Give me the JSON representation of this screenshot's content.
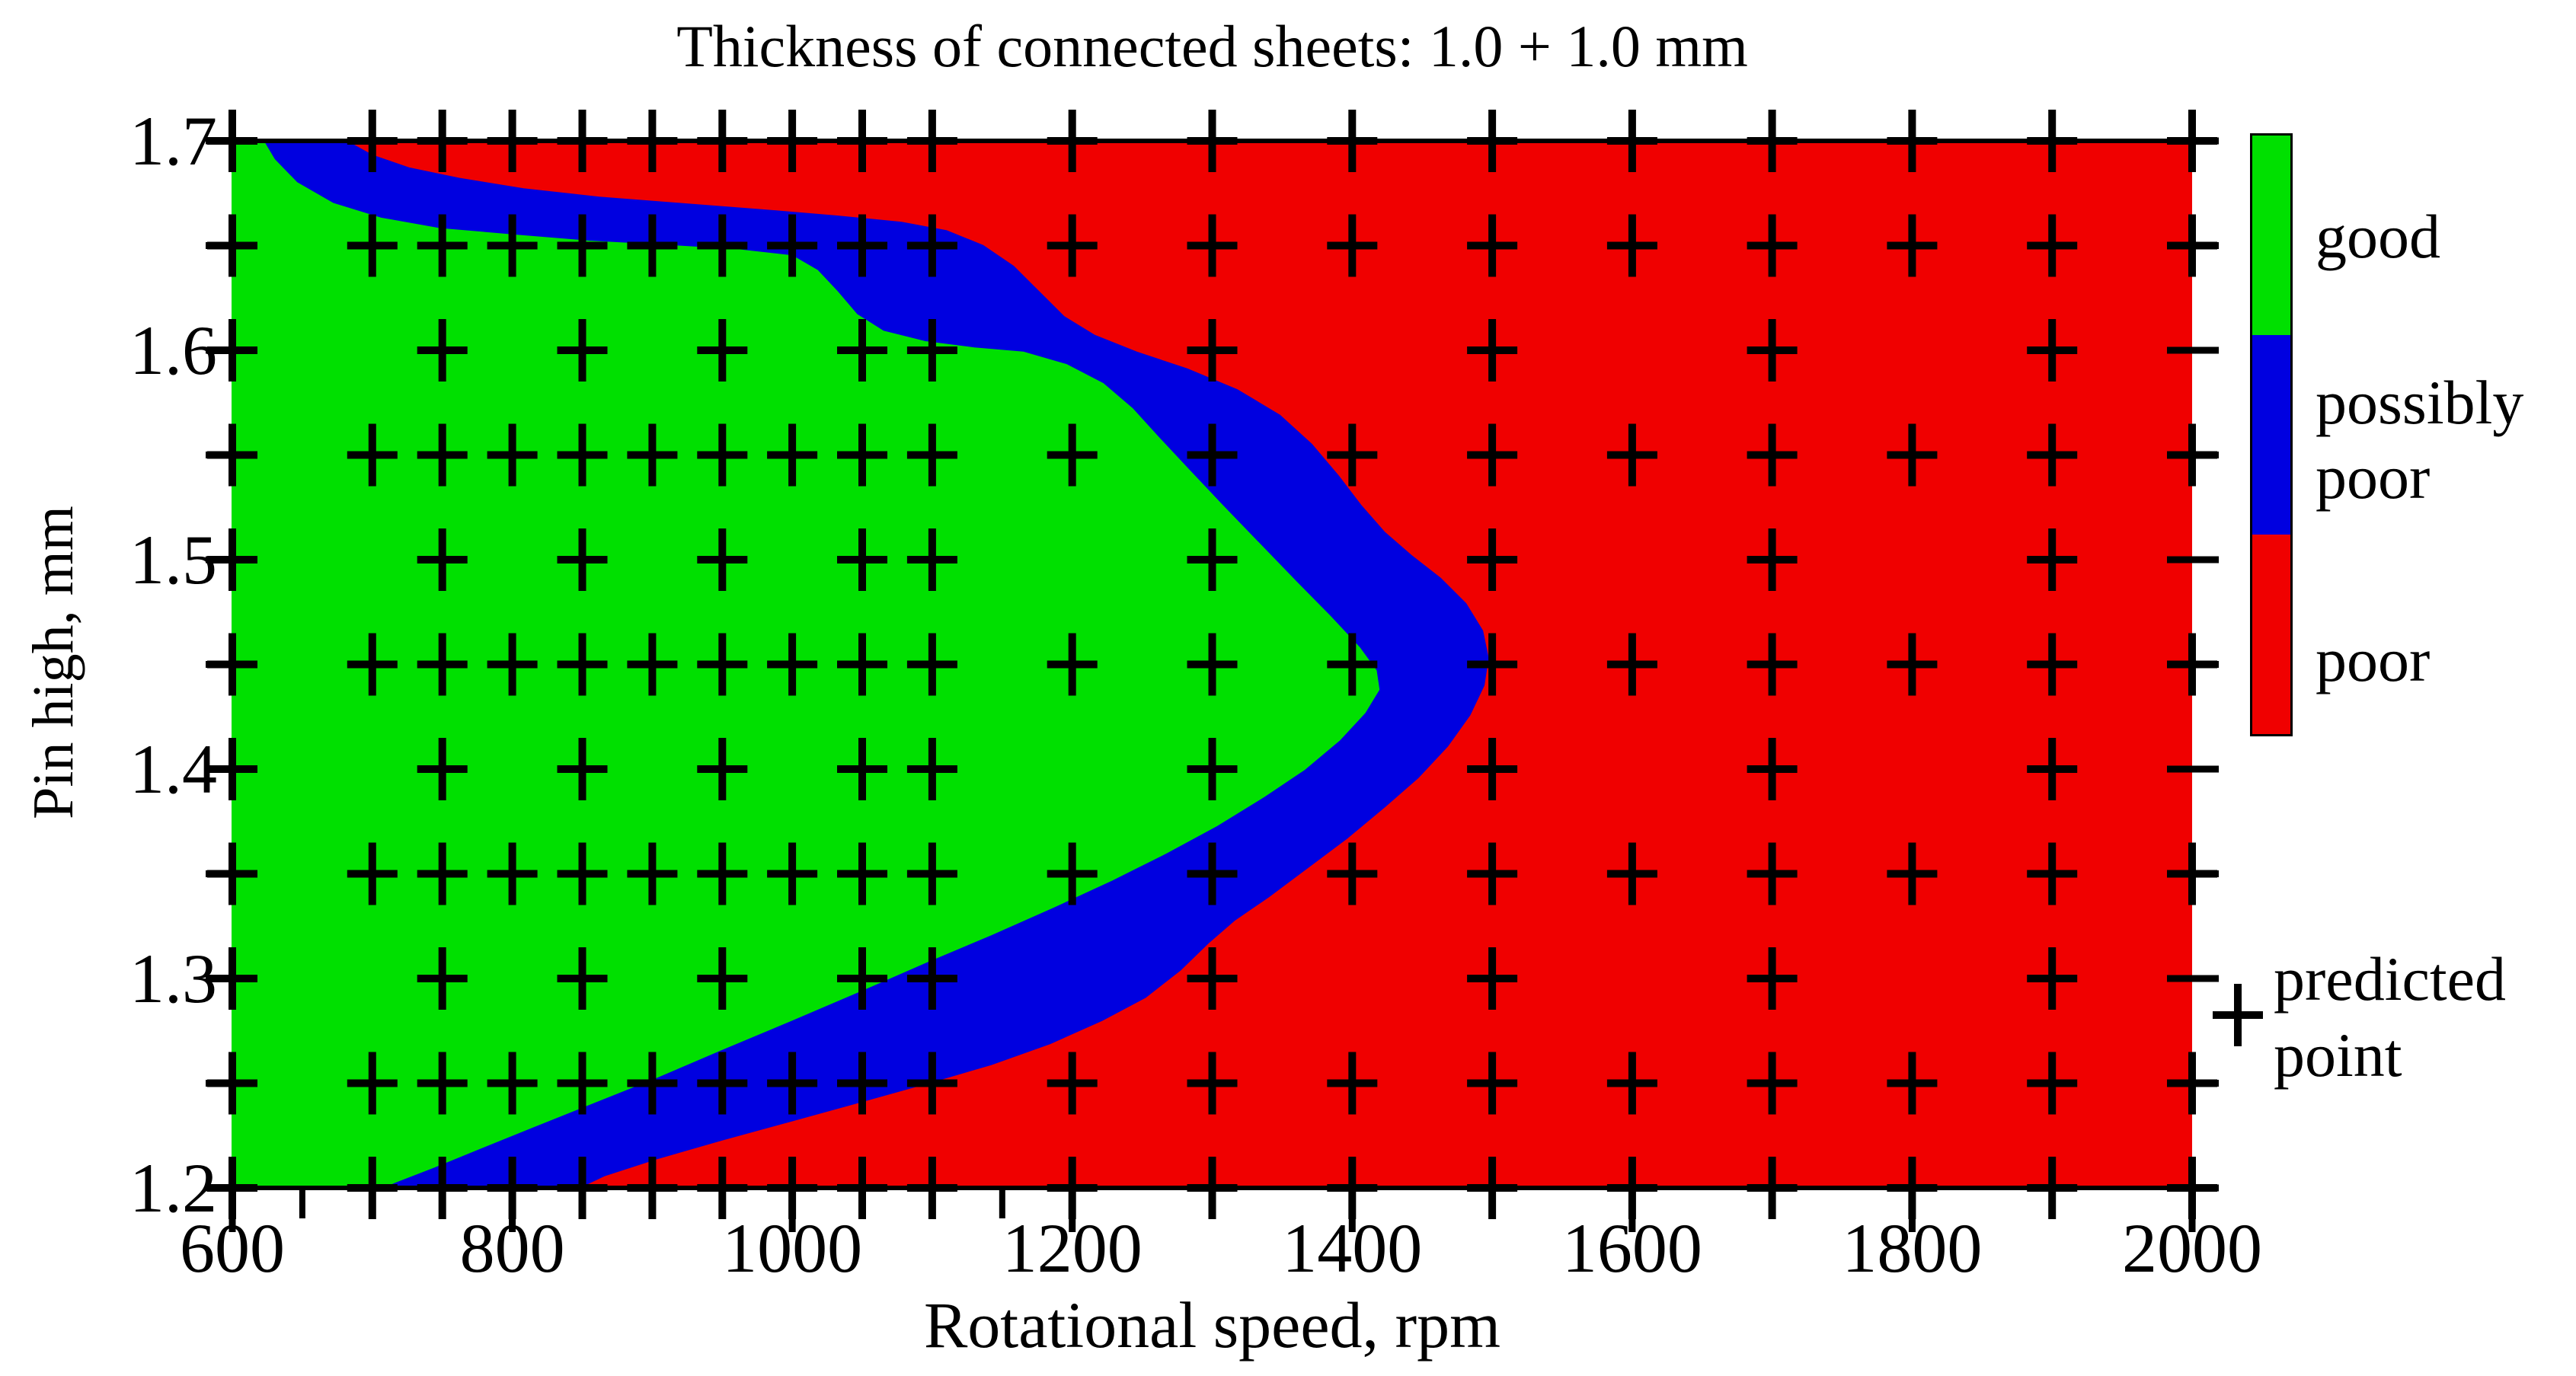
{
  "title": "Thickness of connected sheets: 1.0 + 1.0 mm",
  "x_axis": {
    "label": "Rotational speed, rpm",
    "min": 600,
    "max": 2000,
    "major_ticks": [
      600,
      800,
      1000,
      1200,
      1400,
      1600,
      1800,
      2000
    ],
    "tick_labels": [
      "600",
      "800",
      "1000",
      "1200",
      "1400",
      "1600",
      "1800",
      "2000"
    ],
    "minor_ticks": [
      650,
      700,
      750,
      850,
      900,
      950,
      1050,
      1100,
      1150,
      1300,
      1500,
      1700,
      1900
    ]
  },
  "y_axis": {
    "label": "Pin high, mm",
    "min": 1.2,
    "max": 1.7,
    "major_ticks": [
      1.7,
      1.6,
      1.5,
      1.4,
      1.3,
      1.2
    ],
    "tick_labels": [
      "1.7",
      "1.6",
      "1.5",
      "1.4",
      "1.3",
      "1.2"
    ],
    "minor_ticks": [
      1.65,
      1.55,
      1.45,
      1.35,
      1.25
    ]
  },
  "colors": {
    "good": "#00e000",
    "possibly_poor": "#0000e0",
    "poor": "#f00000",
    "marker": "#000000",
    "axis": "#000000"
  },
  "legend": {
    "entries": [
      {
        "label": "good",
        "color": "#00e000"
      },
      {
        "label": "possibly poor",
        "lines": [
          "possibly",
          "poor"
        ],
        "color": "#0000e0"
      },
      {
        "label": "poor",
        "color": "#f00000"
      }
    ],
    "predicted": {
      "lines": [
        "predicted",
        "point"
      ],
      "marker": "+"
    }
  },
  "chart_data": {
    "type": "heatmap",
    "subtype": "weldability-process-window-contour-map",
    "title": "Thickness of connected sheets: 1.0 + 1.0 mm",
    "xlabel": "Rotational speed, rpm",
    "ylabel": "Pin high, mm",
    "xlim": [
      600,
      2000
    ],
    "ylim": [
      1.2,
      1.7
    ],
    "grid": false,
    "legend_position": "right",
    "regions": [
      {
        "name": "good",
        "color": "#00e000",
        "location": "lower-left region of the map"
      },
      {
        "name": "possibly poor",
        "color": "#0000e0",
        "location": "curved band between good and poor"
      },
      {
        "name": "poor",
        "color": "#f00000",
        "location": "upper-right region of the map"
      }
    ],
    "boundaries": {
      "good_to_possibly_poor": [
        [
          622,
          1.7
        ],
        [
          630,
          1.691
        ],
        [
          646,
          1.68
        ],
        [
          672,
          1.67
        ],
        [
          706,
          1.663
        ],
        [
          748,
          1.658
        ],
        [
          800,
          1.655
        ],
        [
          855,
          1.652
        ],
        [
          910,
          1.65
        ],
        [
          960,
          1.648
        ],
        [
          1000,
          1.645
        ],
        [
          1018,
          1.638
        ],
        [
          1032,
          1.628
        ],
        [
          1046,
          1.617
        ],
        [
          1065,
          1.609
        ],
        [
          1095,
          1.604
        ],
        [
          1130,
          1.601
        ],
        [
          1165,
          1.599
        ],
        [
          1196,
          1.593
        ],
        [
          1222,
          1.584
        ],
        [
          1243,
          1.572
        ],
        [
          1262,
          1.558
        ],
        [
          1283,
          1.543
        ],
        [
          1307,
          1.526
        ],
        [
          1333,
          1.508
        ],
        [
          1359,
          1.49
        ],
        [
          1384,
          1.473
        ],
        [
          1405,
          1.458
        ],
        [
          1417,
          1.447
        ],
        [
          1419,
          1.438
        ],
        [
          1409,
          1.427
        ],
        [
          1391,
          1.414
        ],
        [
          1366,
          1.4
        ],
        [
          1337,
          1.387
        ],
        [
          1303,
          1.373
        ],
        [
          1267,
          1.36
        ],
        [
          1228,
          1.347
        ],
        [
          1186,
          1.334
        ],
        [
          1142,
          1.321
        ],
        [
          1096,
          1.308
        ],
        [
          1048,
          1.294
        ],
        [
          999,
          1.28
        ],
        [
          949,
          1.266
        ],
        [
          900,
          1.252
        ],
        [
          855,
          1.24
        ],
        [
          814,
          1.229
        ],
        [
          777,
          1.219
        ],
        [
          744,
          1.21
        ],
        [
          717,
          1.203
        ],
        [
          706,
          1.2
        ]
      ],
      "possibly_poor_to_poor": [
        [
          681,
          1.7
        ],
        [
          700,
          1.693
        ],
        [
          726,
          1.687
        ],
        [
          762,
          1.682
        ],
        [
          808,
          1.677
        ],
        [
          862,
          1.673
        ],
        [
          920,
          1.67
        ],
        [
          978,
          1.667
        ],
        [
          1032,
          1.664
        ],
        [
          1078,
          1.661
        ],
        [
          1110,
          1.657
        ],
        [
          1136,
          1.65
        ],
        [
          1158,
          1.64
        ],
        [
          1176,
          1.628
        ],
        [
          1194,
          1.616
        ],
        [
          1216,
          1.607
        ],
        [
          1246,
          1.599
        ],
        [
          1282,
          1.591
        ],
        [
          1318,
          1.581
        ],
        [
          1348,
          1.569
        ],
        [
          1371,
          1.555
        ],
        [
          1390,
          1.54
        ],
        [
          1406,
          1.526
        ],
        [
          1423,
          1.513
        ],
        [
          1442,
          1.502
        ],
        [
          1463,
          1.491
        ],
        [
          1481,
          1.479
        ],
        [
          1493,
          1.466
        ],
        [
          1497,
          1.453
        ],
        [
          1494,
          1.44
        ],
        [
          1484,
          1.426
        ],
        [
          1468,
          1.411
        ],
        [
          1447,
          1.396
        ],
        [
          1423,
          1.382
        ],
        [
          1396,
          1.367
        ],
        [
          1368,
          1.353
        ],
        [
          1340,
          1.339
        ],
        [
          1316,
          1.328
        ],
        [
          1297,
          1.317
        ],
        [
          1277,
          1.304
        ],
        [
          1252,
          1.291
        ],
        [
          1221,
          1.28
        ],
        [
          1184,
          1.269
        ],
        [
          1142,
          1.259
        ],
        [
          1096,
          1.25
        ],
        [
          1048,
          1.241
        ],
        [
          999,
          1.232
        ],
        [
          950,
          1.223
        ],
        [
          903,
          1.214
        ],
        [
          866,
          1.206
        ],
        [
          847,
          1.2
        ]
      ]
    },
    "predicted_points": {
      "marker": "+",
      "dense_rows": [
        1.7,
        1.65,
        1.55,
        1.45,
        1.35,
        1.25,
        1.2
      ],
      "dense_cols": [
        600,
        700,
        750,
        800,
        850,
        900,
        950,
        1000,
        1050,
        1100,
        1200,
        1300,
        1400,
        1500,
        1600,
        1700,
        1800,
        1900,
        2000
      ],
      "sparse_rows": [
        1.6,
        1.5,
        1.4,
        1.3
      ],
      "sparse_cols": [
        600,
        750,
        850,
        950,
        1050,
        1100,
        1300,
        1500,
        1700,
        1900
      ]
    }
  }
}
